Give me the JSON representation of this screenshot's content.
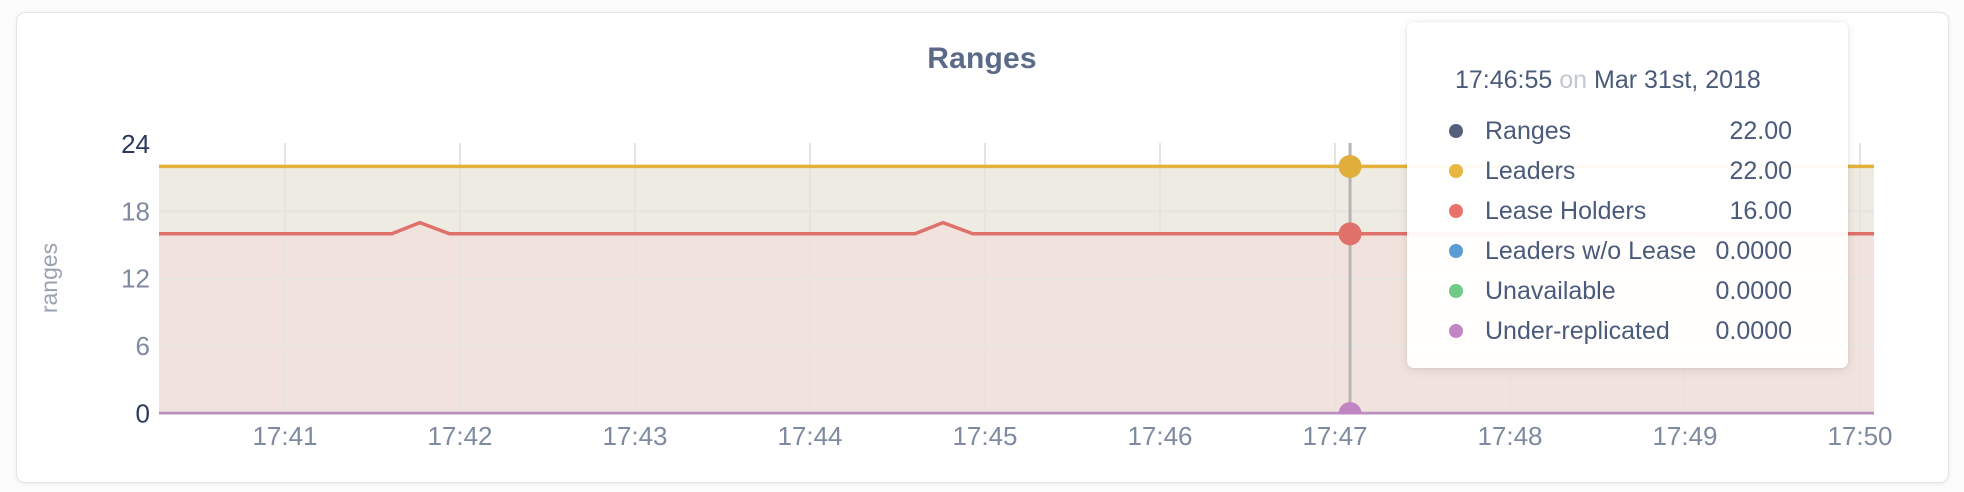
{
  "card": {
    "title": "Ranges"
  },
  "chart_data": {
    "type": "area",
    "title": "Ranges",
    "xlabel": "",
    "ylabel": "ranges",
    "ylim": [
      0,
      24
    ],
    "grid": true,
    "legend_position": "tooltip-overlay",
    "x_tick_labels": [
      "17:41",
      "17:42",
      "17:43",
      "17:44",
      "17:45",
      "17:46",
      "17:47",
      "17:48",
      "17:49",
      "17:50"
    ],
    "y_ticks": [
      {
        "label": "24",
        "value": 24,
        "emphasis": true,
        "grid": false
      },
      {
        "label": "18",
        "value": 18,
        "emphasis": false,
        "grid": true
      },
      {
        "label": "12",
        "value": 12,
        "emphasis": false,
        "grid": true
      },
      {
        "label": "6",
        "value": 6,
        "emphasis": false,
        "grid": true
      },
      {
        "label": "0",
        "value": 0,
        "emphasis": true,
        "grid": false
      }
    ],
    "x_domain_minutes_from_1741": [
      -0.72,
      9.08
    ],
    "series": [
      {
        "name": "Ranges",
        "color": "#55617c",
        "visible": false,
        "fill": null,
        "points": [
          [
            -0.72,
            22
          ],
          [
            9.08,
            22
          ]
        ]
      },
      {
        "name": "Leaders",
        "color": "#e4b23b",
        "visible": true,
        "fill": "#eeebe2",
        "points": [
          [
            -0.72,
            22
          ],
          [
            9.08,
            22
          ]
        ]
      },
      {
        "name": "Lease Holders",
        "color": "#e0716a",
        "visible": true,
        "fill": "#f2e2dd",
        "points": [
          [
            -0.72,
            16
          ],
          [
            0.61,
            16
          ],
          [
            0.77,
            17
          ],
          [
            0.94,
            16
          ],
          [
            3.6,
            16
          ],
          [
            3.76,
            17
          ],
          [
            3.93,
            16
          ],
          [
            9.08,
            16
          ]
        ]
      },
      {
        "name": "Leaders w/o Lease",
        "color": "#5b9bd3",
        "visible": false,
        "fill": null,
        "points": [
          [
            -0.72,
            0
          ],
          [
            9.08,
            0
          ]
        ]
      },
      {
        "name": "Unavailable",
        "color": "#6fc987",
        "visible": false,
        "fill": null,
        "points": [
          [
            -0.72,
            0
          ],
          [
            9.08,
            0
          ]
        ]
      },
      {
        "name": "Under-replicated",
        "color": "#b98fc0",
        "visible": true,
        "fill": null,
        "points": [
          [
            -0.72,
            0
          ],
          [
            9.08,
            0
          ]
        ]
      }
    ]
  },
  "hover": {
    "x_minutes_from_1741": 6.086,
    "dots": [
      {
        "value": 22,
        "color": "#dfae3b"
      },
      {
        "value": 16,
        "color": "#e0716a"
      },
      {
        "value": 0,
        "color": "#c285c4"
      }
    ]
  },
  "tooltip": {
    "time": "17:46:55",
    "on_word": "on",
    "date": "Mar 31st, 2018",
    "rows": [
      {
        "label": "Ranges",
        "value": "22.00",
        "color": "#55617c"
      },
      {
        "label": "Leaders",
        "value": "22.00",
        "color": "#e9b63f"
      },
      {
        "label": "Lease Holders",
        "value": "16.00",
        "color": "#e8716a"
      },
      {
        "label": "Leaders w/o Lease",
        "value": "0.0000",
        "color": "#5b9bd3"
      },
      {
        "label": "Unavailable",
        "value": "0.0000",
        "color": "#6fc987"
      },
      {
        "label": "Under-replicated",
        "value": "0.0000",
        "color": "#c285c4"
      }
    ]
  },
  "colors": {
    "title_text": "#5b6a87",
    "axis_text": "#7f8aa0",
    "axis_text_strong": "#2b3a5c",
    "ylabel_text": "#9aa2b2",
    "gridline": "#e7e4df",
    "hover_line": "#b5b5b5",
    "card_border": "#e4e4e4"
  }
}
